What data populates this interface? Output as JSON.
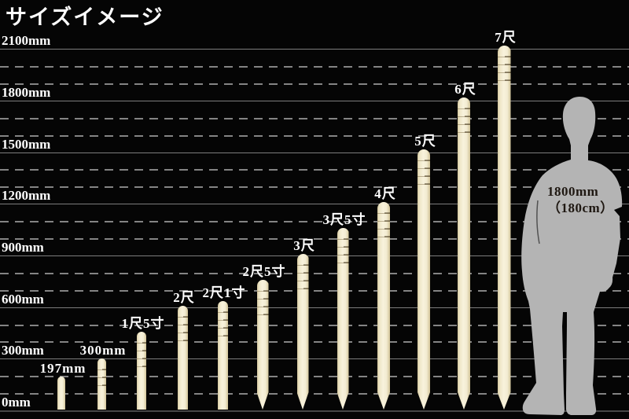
{
  "title": "サイズイメージ",
  "person": {
    "line1": "1800mm",
    "line2": "（180cm）"
  },
  "colors": {
    "background": "#050505",
    "stake_body": "#f6efd6",
    "stake_edge": "#d8cba2",
    "grid_solid": "#7d7d7d",
    "grid_dashed": "#9a9a9a",
    "grid_baseline": "#464646",
    "label_text": "#ffffff",
    "person_silhouette": "#b4b4b4",
    "person_text": "#1f1812"
  },
  "chart_data": {
    "type": "bar",
    "title": "サイズイメージ",
    "unit": "mm",
    "orientation": "vertical",
    "grid": "on",
    "legend": "none",
    "ylim": [
      0,
      2200
    ],
    "yticks": [
      "0mm",
      "300mm",
      "600mm",
      "900mm",
      "1200mm",
      "1500mm",
      "1800mm",
      "2100mm"
    ],
    "ytick_values_mm": [
      0,
      300,
      600,
      900,
      1200,
      1500,
      1800,
      2100
    ],
    "minor_grid_interval_mm": 100,
    "categories": [
      "197mm",
      "300mm",
      "1尺5寸",
      "2尺",
      "2尺1寸",
      "2尺5寸",
      "3尺",
      "3尺5寸",
      "4尺",
      "5尺",
      "6尺",
      "7尺"
    ],
    "values_mm": [
      197,
      300,
      455,
      606,
      636,
      757,
      909,
      1061,
      1212,
      1515,
      1818,
      2121
    ],
    "bars": [
      {
        "label": "197mm",
        "height_mm": 197,
        "tip": "flat",
        "w": 10
      },
      {
        "label": "300mm",
        "height_mm": 300,
        "tip": "flat",
        "w": 11
      },
      {
        "label": "1尺5寸",
        "height_mm": 455,
        "tip": "flat",
        "w": 12
      },
      {
        "label": "2尺",
        "height_mm": 606,
        "tip": "flat",
        "w": 13
      },
      {
        "label": "2尺1寸",
        "height_mm": 636,
        "tip": "flat",
        "w": 13
      },
      {
        "label": "2尺5寸",
        "height_mm": 757,
        "tip": "pointed",
        "w": 15
      },
      {
        "label": "3尺",
        "height_mm": 909,
        "tip": "pointed",
        "w": 15
      },
      {
        "label": "3尺5寸",
        "height_mm": 1061,
        "tip": "pointed",
        "w": 15
      },
      {
        "label": "4尺",
        "height_mm": 1212,
        "tip": "pointed",
        "w": 16
      },
      {
        "label": "5尺",
        "height_mm": 1515,
        "tip": "pointed",
        "w": 16
      },
      {
        "label": "6尺",
        "height_mm": 1818,
        "tip": "pointed",
        "w": 16
      },
      {
        "label": "7尺",
        "height_mm": 2121,
        "tip": "pointed",
        "w": 17
      }
    ],
    "reference_figure": {
      "label_line1": "1800mm",
      "label_line2": "（180cm）",
      "height_mm": 1800
    }
  }
}
